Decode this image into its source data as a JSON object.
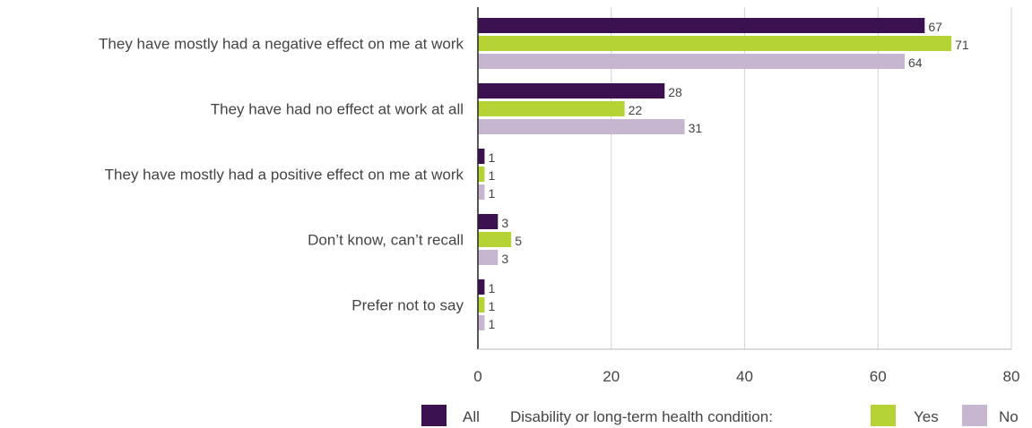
{
  "chart_data": {
    "type": "bar",
    "orientation": "horizontal",
    "categories": [
      "They have mostly had a negative effect on me at work",
      "They have had no effect at work at all",
      "They have mostly had a positive effect on me at work",
      "Don’t know, can’t recall",
      "Prefer not to say"
    ],
    "series": [
      {
        "name": "All",
        "color": "#3b1150",
        "values": [
          67,
          28,
          1,
          3,
          1
        ]
      },
      {
        "name": "Yes",
        "color": "#b5d334",
        "values": [
          71,
          22,
          1,
          5,
          1
        ]
      },
      {
        "name": "No",
        "color": "#c6b6cf",
        "values": [
          64,
          31,
          1,
          3,
          1
        ]
      }
    ],
    "xlim": [
      0,
      80
    ],
    "xticks": [
      0,
      20,
      40,
      60,
      80
    ],
    "grid": true,
    "legend_title": "Disability or long-term health condition:",
    "legend_position": "bottom-right"
  }
}
